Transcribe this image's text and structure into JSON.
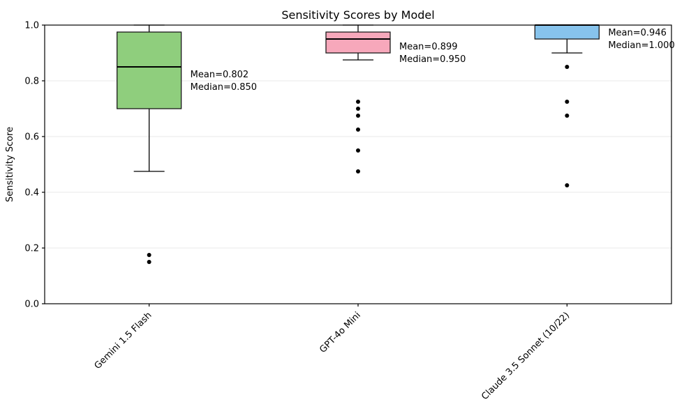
{
  "chart_data": {
    "type": "boxplot",
    "title": "Sensitivity Scores by Model",
    "ylabel": "Sensitivity Score",
    "xlabel": "",
    "ylim": [
      0.0,
      1.0
    ],
    "ytick_step": 0.2,
    "ytick_labels": [
      "0.0",
      "0.2",
      "0.4",
      "0.6",
      "0.8",
      "1.0"
    ],
    "grid": "horizontal light-gray lines at 0.2 intervals, full black frame around axes",
    "legend": "none",
    "categories": [
      "Gemini 1.5 Flash",
      "GPT-4o Mini",
      "Claude 3.5 Sonnet (10/22)"
    ],
    "series": [
      {
        "model": "Gemini 1.5 Flash",
        "box_color": "#8fce7d",
        "whisker_low": 0.475,
        "q1": 0.7,
        "median": 0.85,
        "q3": 0.975,
        "whisker_high": 1.0,
        "outliers": [
          0.175,
          0.15
        ],
        "mean": 0.802,
        "annotation_lines": [
          "Mean=0.802",
          "Median=0.850"
        ]
      },
      {
        "model": "GPT-4o Mini",
        "box_color": "#f7a8bb",
        "whisker_low": 0.875,
        "q1": 0.9,
        "median": 0.95,
        "q3": 0.975,
        "whisker_high": 1.0,
        "outliers": [
          0.725,
          0.7,
          0.675,
          0.625,
          0.55,
          0.475
        ],
        "mean": 0.899,
        "annotation_lines": [
          "Mean=0.899",
          "Median=0.950"
        ]
      },
      {
        "model": "Claude 3.5 Sonnet (10/22)",
        "box_color": "#87c3ec",
        "whisker_low": 0.9,
        "q1": 0.95,
        "median": 1.0,
        "q3": 1.0,
        "whisker_high": 1.0,
        "outliers": [
          0.85,
          0.725,
          0.675,
          0.425
        ],
        "mean": 0.946,
        "annotation_lines": [
          "Mean=0.946",
          "Median=1.000"
        ]
      }
    ],
    "colors": {
      "box_edge": "#1a1a1a",
      "median_line": "#000000",
      "whisker": "#000000",
      "outlier_dot": "#000000",
      "gridline": "#e8e8e8",
      "axis_frame": "#000000",
      "background": "#ffffff",
      "text": "#000000"
    }
  }
}
